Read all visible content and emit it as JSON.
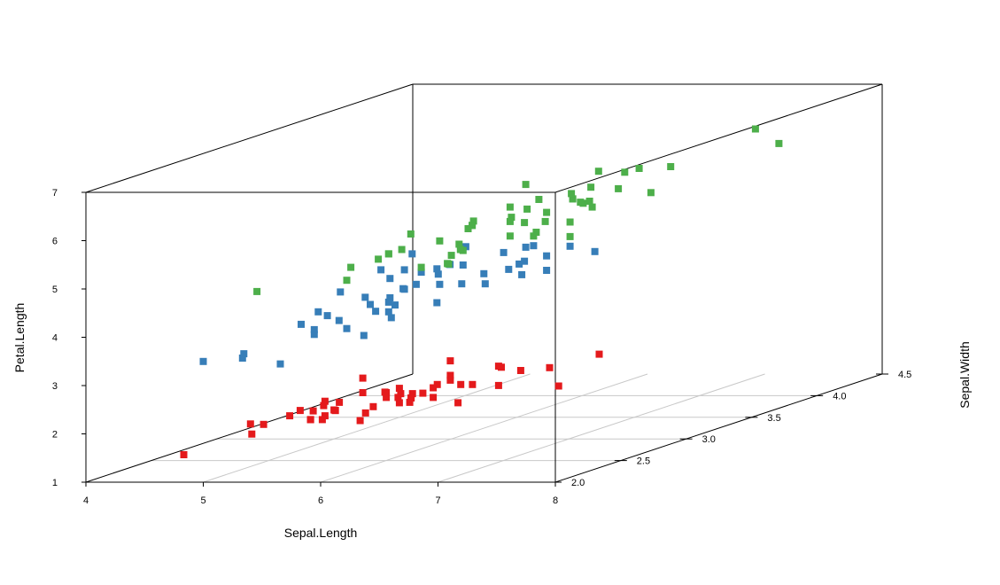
{
  "chart_data": {
    "type": "scatter",
    "projection": "3d",
    "grid": true,
    "colors": {
      "setosa": "#E41A1C",
      "versicolor": "#377EB8",
      "virginica": "#4DAF4A"
    },
    "axes": {
      "x": {
        "label": "Sepal.Length",
        "range": [
          4,
          8
        ],
        "ticks": [
          "4",
          "5",
          "6",
          "7",
          "8"
        ]
      },
      "y": {
        "label": "Sepal.Width",
        "range": [
          2,
          4.5
        ],
        "ticks": [
          "2.0",
          "2.5",
          "3.0",
          "3.5",
          "4.0",
          "4.5"
        ]
      },
      "z": {
        "label": "Petal.Length",
        "range": [
          1,
          7
        ],
        "ticks": [
          "1",
          "2",
          "3",
          "4",
          "5",
          "6",
          "7"
        ]
      }
    },
    "series": [
      {
        "color": "#E41A1C",
        "points": [
          [
            5.1,
            3.5,
            1.4
          ],
          [
            4.9,
            3.0,
            1.4
          ],
          [
            4.7,
            3.2,
            1.3
          ],
          [
            4.6,
            3.1,
            1.5
          ],
          [
            5.0,
            3.6,
            1.4
          ],
          [
            5.4,
            3.9,
            1.7
          ],
          [
            4.6,
            3.4,
            1.4
          ],
          [
            5.0,
            3.4,
            1.5
          ],
          [
            4.4,
            2.9,
            1.4
          ],
          [
            4.9,
            3.1,
            1.5
          ],
          [
            5.4,
            3.7,
            1.5
          ],
          [
            4.8,
            3.4,
            1.6
          ],
          [
            4.8,
            3.0,
            1.4
          ],
          [
            4.3,
            3.0,
            1.1
          ],
          [
            5.8,
            4.0,
            1.2
          ],
          [
            5.7,
            4.4,
            1.5
          ],
          [
            5.4,
            3.9,
            1.3
          ],
          [
            5.1,
            3.5,
            1.4
          ],
          [
            5.7,
            3.8,
            1.7
          ],
          [
            5.1,
            3.8,
            1.5
          ],
          [
            5.4,
            3.4,
            1.7
          ],
          [
            5.1,
            3.7,
            1.5
          ],
          [
            4.6,
            3.6,
            1.0
          ],
          [
            5.1,
            3.3,
            1.7
          ],
          [
            4.8,
            3.4,
            1.9
          ],
          [
            5.0,
            3.0,
            1.6
          ],
          [
            5.0,
            3.4,
            1.6
          ],
          [
            5.2,
            3.5,
            1.5
          ],
          [
            5.2,
            3.4,
            1.4
          ],
          [
            4.7,
            3.2,
            1.6
          ],
          [
            4.8,
            3.1,
            1.6
          ],
          [
            5.4,
            3.4,
            1.5
          ],
          [
            5.2,
            4.1,
            1.5
          ],
          [
            5.5,
            4.2,
            1.4
          ],
          [
            4.9,
            3.1,
            1.5
          ],
          [
            5.0,
            3.2,
            1.2
          ],
          [
            5.5,
            3.5,
            1.3
          ],
          [
            4.9,
            3.6,
            1.4
          ],
          [
            4.4,
            3.0,
            1.3
          ],
          [
            5.1,
            3.4,
            1.5
          ],
          [
            5.0,
            3.5,
            1.3
          ],
          [
            4.5,
            2.3,
            1.3
          ],
          [
            4.4,
            3.2,
            1.3
          ],
          [
            5.0,
            3.5,
            1.6
          ],
          [
            5.1,
            3.8,
            1.9
          ],
          [
            4.8,
            3.0,
            1.4
          ],
          [
            5.1,
            3.8,
            1.6
          ],
          [
            4.6,
            3.2,
            1.4
          ],
          [
            5.3,
            3.7,
            1.5
          ],
          [
            5.0,
            3.3,
            1.4
          ]
        ]
      },
      {
        "color": "#377EB8",
        "points": [
          [
            7.0,
            3.2,
            4.7
          ],
          [
            6.4,
            3.2,
            4.5
          ],
          [
            6.9,
            3.1,
            4.9
          ],
          [
            5.5,
            2.3,
            4.0
          ],
          [
            6.5,
            2.8,
            4.6
          ],
          [
            5.7,
            2.8,
            4.5
          ],
          [
            6.3,
            3.3,
            4.7
          ],
          [
            4.9,
            2.4,
            3.3
          ],
          [
            6.6,
            2.9,
            4.6
          ],
          [
            5.2,
            2.7,
            3.9
          ],
          [
            5.0,
            2.0,
            3.5
          ],
          [
            5.9,
            3.0,
            4.2
          ],
          [
            6.0,
            2.2,
            4.0
          ],
          [
            6.1,
            2.9,
            4.7
          ],
          [
            5.6,
            2.9,
            3.6
          ],
          [
            6.7,
            3.1,
            4.4
          ],
          [
            5.6,
            3.0,
            4.5
          ],
          [
            5.8,
            2.7,
            4.1
          ],
          [
            6.2,
            2.2,
            4.5
          ],
          [
            5.6,
            2.5,
            3.9
          ],
          [
            5.9,
            3.2,
            4.8
          ],
          [
            6.1,
            2.8,
            4.0
          ],
          [
            6.3,
            2.5,
            4.9
          ],
          [
            6.1,
            2.8,
            4.7
          ],
          [
            6.4,
            2.9,
            4.3
          ],
          [
            6.6,
            3.0,
            4.4
          ],
          [
            6.8,
            2.8,
            4.8
          ],
          [
            6.7,
            3.0,
            5.0
          ],
          [
            6.0,
            2.9,
            4.5
          ],
          [
            5.7,
            2.6,
            3.5
          ],
          [
            5.5,
            2.4,
            3.8
          ],
          [
            5.5,
            2.4,
            3.7
          ],
          [
            5.8,
            2.7,
            3.9
          ],
          [
            6.0,
            2.7,
            5.1
          ],
          [
            5.4,
            3.0,
            4.5
          ],
          [
            6.0,
            3.4,
            4.5
          ],
          [
            6.7,
            3.1,
            4.7
          ],
          [
            6.3,
            2.3,
            4.4
          ],
          [
            5.6,
            3.0,
            4.1
          ],
          [
            5.5,
            2.5,
            4.0
          ],
          [
            5.5,
            2.6,
            4.4
          ],
          [
            6.1,
            3.0,
            4.6
          ],
          [
            5.8,
            2.6,
            4.0
          ],
          [
            5.0,
            2.3,
            3.3
          ],
          [
            5.6,
            2.7,
            4.2
          ],
          [
            5.7,
            3.0,
            4.2
          ],
          [
            5.7,
            2.9,
            4.2
          ],
          [
            6.2,
            2.9,
            4.3
          ],
          [
            5.1,
            2.5,
            3.0
          ],
          [
            5.7,
            2.8,
            4.1
          ]
        ]
      },
      {
        "color": "#4DAF4A",
        "points": [
          [
            6.3,
            3.3,
            6.0
          ],
          [
            5.8,
            2.7,
            5.1
          ],
          [
            7.1,
            3.0,
            5.9
          ],
          [
            6.3,
            2.9,
            5.6
          ],
          [
            6.5,
            3.0,
            5.8
          ],
          [
            7.6,
            3.0,
            6.6
          ],
          [
            4.9,
            2.5,
            4.5
          ],
          [
            7.3,
            2.9,
            6.3
          ],
          [
            6.7,
            2.5,
            5.8
          ],
          [
            7.2,
            3.6,
            6.1
          ],
          [
            6.5,
            3.2,
            5.1
          ],
          [
            6.4,
            2.7,
            5.3
          ],
          [
            6.8,
            3.0,
            5.5
          ],
          [
            5.7,
            2.5,
            5.0
          ],
          [
            5.8,
            2.8,
            5.1
          ],
          [
            6.4,
            3.2,
            5.3
          ],
          [
            6.5,
            3.0,
            5.5
          ],
          [
            7.7,
            3.8,
            6.7
          ],
          [
            7.7,
            2.6,
            6.9
          ],
          [
            6.0,
            2.2,
            5.0
          ],
          [
            6.9,
            3.2,
            5.7
          ],
          [
            5.6,
            2.8,
            4.9
          ],
          [
            7.7,
            2.8,
            6.7
          ],
          [
            6.3,
            2.7,
            4.9
          ],
          [
            6.7,
            3.3,
            5.7
          ],
          [
            7.2,
            3.2,
            6.0
          ],
          [
            6.2,
            2.8,
            4.8
          ],
          [
            6.1,
            3.0,
            4.9
          ],
          [
            6.4,
            2.8,
            5.6
          ],
          [
            7.2,
            3.0,
            5.8
          ],
          [
            7.4,
            2.8,
            6.1
          ],
          [
            7.9,
            3.8,
            6.4
          ],
          [
            6.4,
            2.8,
            5.6
          ],
          [
            6.3,
            2.8,
            5.1
          ],
          [
            6.1,
            2.6,
            5.6
          ],
          [
            7.7,
            3.0,
            6.1
          ],
          [
            6.3,
            3.4,
            5.6
          ],
          [
            6.4,
            3.1,
            5.5
          ],
          [
            6.0,
            3.0,
            4.8
          ],
          [
            6.9,
            3.1,
            5.4
          ],
          [
            6.7,
            3.1,
            5.6
          ],
          [
            6.9,
            3.1,
            5.1
          ],
          [
            5.8,
            2.7,
            5.1
          ],
          [
            6.8,
            3.2,
            5.9
          ],
          [
            6.7,
            3.3,
            5.7
          ],
          [
            6.7,
            3.0,
            5.2
          ],
          [
            6.3,
            2.5,
            5.0
          ],
          [
            6.5,
            3.0,
            5.2
          ],
          [
            6.2,
            3.4,
            5.4
          ],
          [
            5.9,
            3.0,
            5.1
          ]
        ]
      }
    ]
  }
}
